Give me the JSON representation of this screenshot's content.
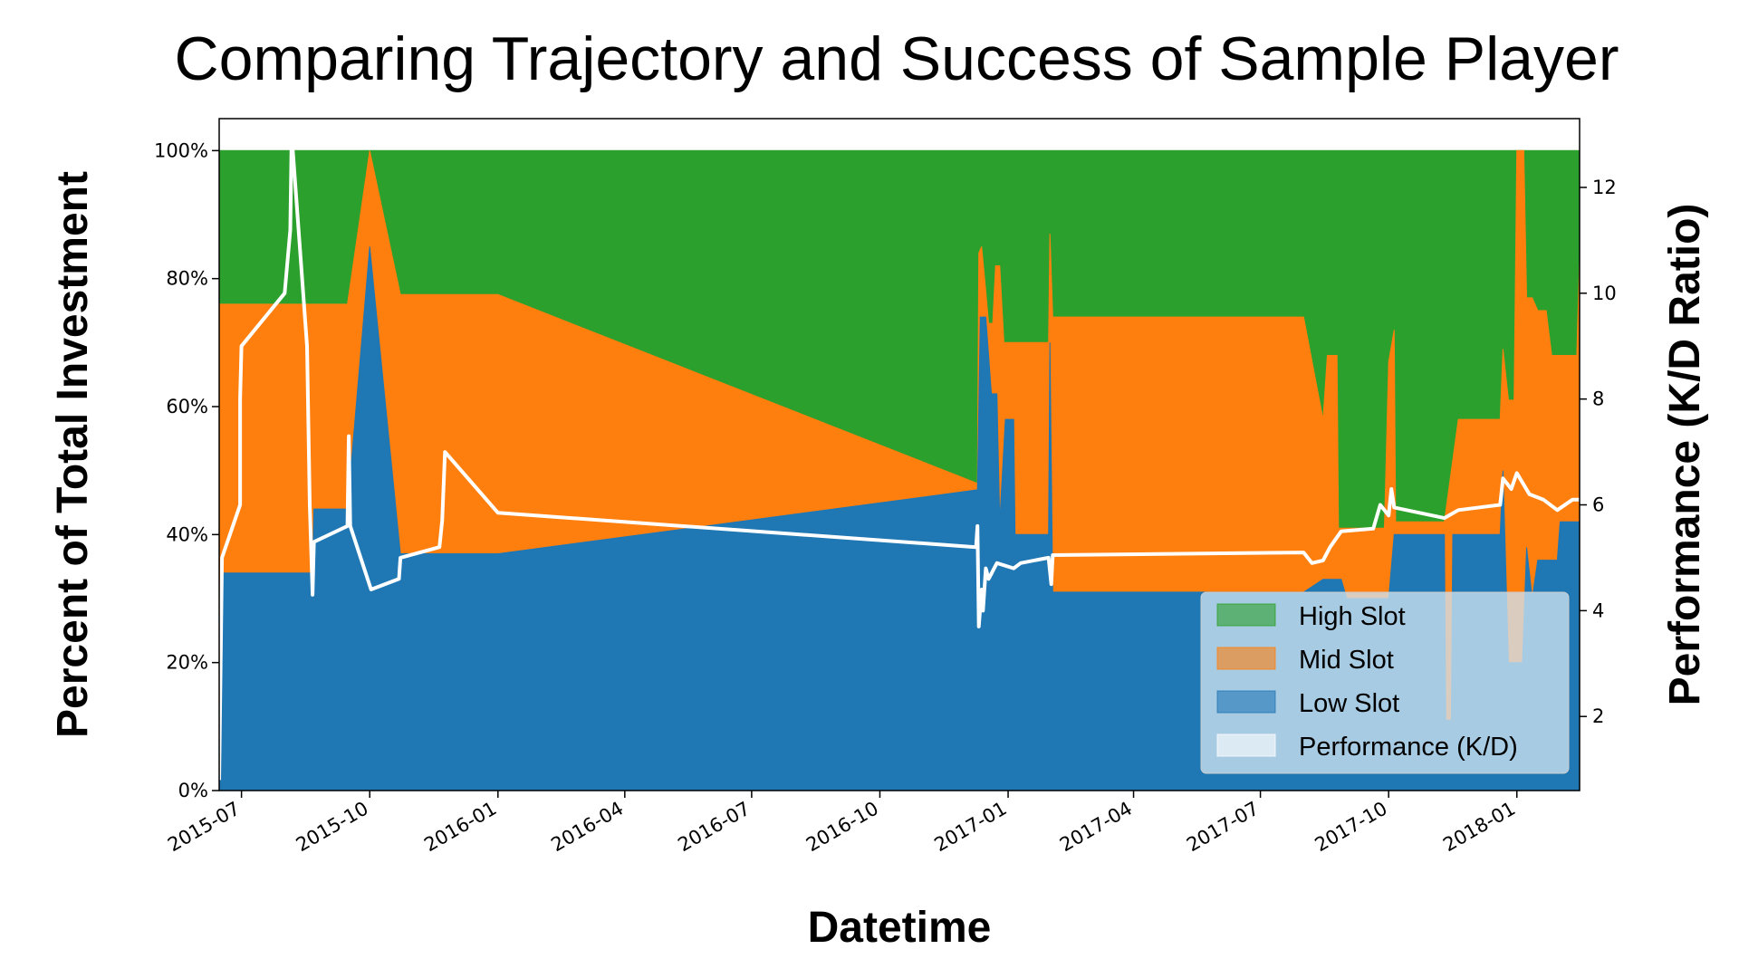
{
  "chart_data": {
    "type": "area",
    "title": "Comparing Trajectory and Success of Sample Player",
    "xlabel": "Datetime",
    "ylabel": "Percent of Total Investment",
    "y2label": "Performance (K/D Ratio)",
    "xlim": [
      "2015-06-15",
      "2018-02-15"
    ],
    "ylim": [
      0,
      1.05
    ],
    "y2lim": [
      0.6,
      13.3
    ],
    "x_ticks": [
      "2015-07-01",
      "2015-10-01",
      "2016-01-01",
      "2016-04-01",
      "2016-07-01",
      "2016-10-01",
      "2017-01-01",
      "2017-04-01",
      "2017-07-01",
      "2017-10-01",
      "2018-01-01"
    ],
    "x_tick_labels": [
      "2015-07",
      "2015-10",
      "2016-01",
      "2016-04",
      "2016-07",
      "2016-10",
      "2017-01",
      "2017-04",
      "2017-07",
      "2017-10",
      "2018-01"
    ],
    "y_ticks": [
      0,
      0.2,
      0.4,
      0.6,
      0.8,
      1.0
    ],
    "y_tick_labels": [
      "0%",
      "20%",
      "40%",
      "60%",
      "80%",
      "100%"
    ],
    "y2_ticks": [
      2,
      4,
      6,
      8,
      10,
      12
    ],
    "y2_tick_labels": [
      "2",
      "4",
      "6",
      "8",
      "10",
      "12"
    ],
    "grid": false,
    "legend_position": "lower-right",
    "series": [
      {
        "name": "Low Slot",
        "color": "#1f77b4",
        "points": [
          [
            "2015-06-15",
            0.04
          ],
          [
            "2015-06-17",
            0.34
          ],
          [
            "2015-08-21",
            0.34
          ],
          [
            "2015-08-22",
            0.44
          ],
          [
            "2015-09-15",
            0.44
          ],
          [
            "2015-10-01",
            0.85
          ],
          [
            "2015-10-23",
            0.37
          ],
          [
            "2016-01-01",
            0.37
          ],
          [
            "2016-12-10",
            0.47
          ],
          [
            "2016-12-12",
            0.74
          ],
          [
            "2016-12-16",
            0.74
          ],
          [
            "2016-12-20",
            0.62
          ],
          [
            "2016-12-24",
            0.62
          ],
          [
            "2016-12-26",
            0.42
          ],
          [
            "2016-12-30",
            0.58
          ],
          [
            "2017-01-05",
            0.58
          ],
          [
            "2017-01-06",
            0.4
          ],
          [
            "2017-01-30",
            0.4
          ],
          [
            "2017-01-31",
            0.7
          ],
          [
            "2017-02-02",
            0.31
          ],
          [
            "2017-08-01",
            0.31
          ],
          [
            "2017-08-15",
            0.33
          ],
          [
            "2017-08-28",
            0.33
          ],
          [
            "2017-09-01",
            0.3
          ],
          [
            "2017-10-01",
            0.3
          ],
          [
            "2017-10-05",
            0.4
          ],
          [
            "2017-11-10",
            0.4
          ],
          [
            "2017-11-11",
            0.11
          ],
          [
            "2017-11-15",
            0.11
          ],
          [
            "2017-11-16",
            0.4
          ],
          [
            "2017-12-20",
            0.4
          ],
          [
            "2017-12-22",
            0.5
          ],
          [
            "2017-12-26",
            0.2
          ],
          [
            "2018-01-05",
            0.2
          ],
          [
            "2018-01-08",
            0.38
          ],
          [
            "2018-01-12",
            0.3
          ],
          [
            "2018-01-16",
            0.36
          ],
          [
            "2018-01-30",
            0.36
          ],
          [
            "2018-02-01",
            0.42
          ],
          [
            "2018-02-15",
            0.42
          ]
        ]
      },
      {
        "name": "Mid Slot",
        "color": "#ff7f0e",
        "points": [
          [
            "2015-06-15",
            0.76
          ],
          [
            "2015-06-17",
            0.76
          ],
          [
            "2015-08-21",
            0.76
          ],
          [
            "2015-09-15",
            0.76
          ],
          [
            "2015-10-01",
            1.0
          ],
          [
            "2015-10-23",
            0.775
          ],
          [
            "2016-01-01",
            0.775
          ],
          [
            "2016-12-10",
            0.48
          ],
          [
            "2016-12-11",
            0.84
          ],
          [
            "2016-12-13",
            0.85
          ],
          [
            "2016-12-16",
            0.78
          ],
          [
            "2016-12-18",
            0.73
          ],
          [
            "2016-12-21",
            0.73
          ],
          [
            "2016-12-23",
            0.82
          ],
          [
            "2016-12-26",
            0.82
          ],
          [
            "2016-12-29",
            0.7
          ],
          [
            "2017-01-30",
            0.7
          ],
          [
            "2017-01-31",
            0.87
          ],
          [
            "2017-02-02",
            0.74
          ],
          [
            "2017-08-01",
            0.74
          ],
          [
            "2017-08-15",
            0.58
          ],
          [
            "2017-08-18",
            0.68
          ],
          [
            "2017-08-25",
            0.68
          ],
          [
            "2017-08-26",
            0.41
          ],
          [
            "2017-09-28",
            0.41
          ],
          [
            "2017-10-01",
            0.67
          ],
          [
            "2017-10-05",
            0.72
          ],
          [
            "2017-10-06",
            0.42
          ],
          [
            "2017-11-10",
            0.42
          ],
          [
            "2017-11-20",
            0.58
          ],
          [
            "2017-12-20",
            0.58
          ],
          [
            "2017-12-22",
            0.69
          ],
          [
            "2017-12-26",
            0.61
          ],
          [
            "2017-12-30",
            0.61
          ],
          [
            "2018-01-01",
            1.0
          ],
          [
            "2018-01-06",
            1.0
          ],
          [
            "2018-01-08",
            0.77
          ],
          [
            "2018-01-12",
            0.77
          ],
          [
            "2018-01-16",
            0.75
          ],
          [
            "2018-01-22",
            0.75
          ],
          [
            "2018-01-26",
            0.68
          ],
          [
            "2018-02-13",
            0.68
          ],
          [
            "2018-02-15",
            0.83
          ]
        ]
      },
      {
        "name": "High Slot",
        "color": "#2ca02c",
        "points": [
          [
            "2015-06-15",
            1.0
          ],
          [
            "2018-02-15",
            1.0
          ]
        ]
      }
    ],
    "line_series": {
      "name": "Performance (K/D)",
      "color": "#ffffff",
      "axis": "right",
      "points": [
        [
          "2015-06-15",
          0.8
        ],
        [
          "2015-06-17",
          5.0
        ],
        [
          "2015-06-30",
          6.0
        ],
        [
          "2015-06-30",
          8.0
        ],
        [
          "2015-07-01",
          9.0
        ],
        [
          "2015-08-01",
          10.0
        ],
        [
          "2015-08-05",
          11.2
        ],
        [
          "2015-08-06",
          13.0
        ],
        [
          "2015-08-17",
          9.0
        ],
        [
          "2015-08-19",
          6.0
        ],
        [
          "2015-08-21",
          4.3
        ],
        [
          "2015-08-22",
          5.3
        ],
        [
          "2015-09-15",
          5.6
        ],
        [
          "2015-09-16",
          7.3
        ],
        [
          "2015-09-17",
          5.6
        ],
        [
          "2015-10-02",
          4.4
        ],
        [
          "2015-10-22",
          4.6
        ],
        [
          "2015-10-23",
          5.0
        ],
        [
          "2015-11-20",
          5.2
        ],
        [
          "2015-11-22",
          5.7
        ],
        [
          "2015-11-24",
          7.0
        ],
        [
          "2016-01-01",
          5.85
        ],
        [
          "2016-12-09",
          5.2
        ],
        [
          "2016-12-10",
          5.6
        ],
        [
          "2016-12-11",
          3.7
        ],
        [
          "2016-12-13",
          4.4
        ],
        [
          "2016-12-14",
          4.0
        ],
        [
          "2016-12-16",
          4.8
        ],
        [
          "2016-12-18",
          4.6
        ],
        [
          "2016-12-20",
          4.7
        ],
        [
          "2016-12-22",
          4.8
        ],
        [
          "2016-12-24",
          4.9
        ],
        [
          "2017-01-05",
          4.8
        ],
        [
          "2017-01-10",
          4.9
        ],
        [
          "2017-01-30",
          5.0
        ],
        [
          "2017-02-01",
          4.5
        ],
        [
          "2017-02-02",
          5.05
        ],
        [
          "2017-08-01",
          5.1
        ],
        [
          "2017-08-07",
          4.9
        ],
        [
          "2017-08-15",
          4.95
        ],
        [
          "2017-08-20",
          5.2
        ],
        [
          "2017-08-28",
          5.5
        ],
        [
          "2017-09-20",
          5.55
        ],
        [
          "2017-09-25",
          6.0
        ],
        [
          "2017-10-01",
          5.8
        ],
        [
          "2017-10-03",
          6.3
        ],
        [
          "2017-10-05",
          5.95
        ],
        [
          "2017-11-10",
          5.75
        ],
        [
          "2017-11-20",
          5.9
        ],
        [
          "2017-12-20",
          6.0
        ],
        [
          "2017-12-22",
          6.5
        ],
        [
          "2017-12-28",
          6.3
        ],
        [
          "2018-01-01",
          6.6
        ],
        [
          "2018-01-10",
          6.2
        ],
        [
          "2018-01-20",
          6.1
        ],
        [
          "2018-01-30",
          5.9
        ],
        [
          "2018-02-10",
          6.1
        ],
        [
          "2018-02-15",
          6.1
        ]
      ]
    }
  }
}
